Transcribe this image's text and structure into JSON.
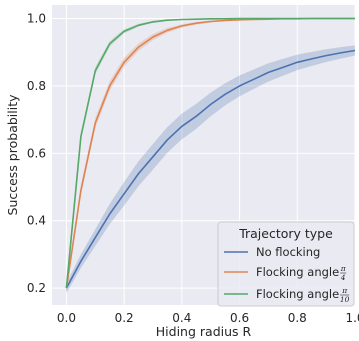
{
  "chart_data": {
    "type": "line",
    "xlabel": "Hiding radius R",
    "ylabel": "Success probability",
    "xlim": [
      -0.05,
      1.0
    ],
    "ylim": [
      0.15,
      1.04
    ],
    "xticks": [
      0.0,
      0.2,
      0.4,
      0.6,
      0.8,
      1.0
    ],
    "xtick_labels": [
      "0.0",
      "0.2",
      "0.4",
      "0.6",
      "0.8",
      "1.0"
    ],
    "yticks": [
      0.2,
      0.4,
      0.6,
      0.8,
      1.0
    ],
    "ytick_labels": [
      "0.2",
      "0.4",
      "0.6",
      "0.8",
      "1.0"
    ],
    "grid": true,
    "style": "seaborn-darkgrid",
    "legend": {
      "title": "Trajectory type",
      "placement": "lower-right"
    },
    "series": [
      {
        "name": "No flocking",
        "label_text": "No flocking",
        "label_frac": null,
        "color": "#4c72b0",
        "x": [
          0.0,
          0.05,
          0.1,
          0.15,
          0.2,
          0.25,
          0.3,
          0.35,
          0.4,
          0.45,
          0.5,
          0.55,
          0.6,
          0.65,
          0.7,
          0.75,
          0.8,
          0.85,
          0.9,
          0.95,
          1.0
        ],
        "y": [
          0.2,
          0.28,
          0.35,
          0.42,
          0.48,
          0.54,
          0.59,
          0.64,
          0.68,
          0.71,
          0.745,
          0.775,
          0.8,
          0.82,
          0.84,
          0.855,
          0.87,
          0.88,
          0.89,
          0.898,
          0.905
        ],
        "ci": [
          0.015,
          0.02,
          0.025,
          0.03,
          0.035,
          0.037,
          0.038,
          0.038,
          0.038,
          0.037,
          0.035,
          0.033,
          0.031,
          0.029,
          0.027,
          0.025,
          0.023,
          0.021,
          0.019,
          0.017,
          0.015
        ]
      },
      {
        "name": "Flocking angle π/4",
        "label_text": "Flocking angle ",
        "label_frac": [
          "π",
          "4"
        ],
        "color": "#dd8452",
        "x": [
          0.0,
          0.05,
          0.1,
          0.15,
          0.2,
          0.25,
          0.3,
          0.35,
          0.4,
          0.45,
          0.5,
          0.55,
          0.6,
          0.65,
          0.7,
          0.75,
          0.8,
          0.85,
          0.9,
          0.95,
          1.0
        ],
        "y": [
          0.2,
          0.49,
          0.69,
          0.8,
          0.87,
          0.915,
          0.945,
          0.965,
          0.978,
          0.986,
          0.991,
          0.994,
          0.996,
          0.997,
          0.998,
          0.999,
          0.999,
          1.0,
          1.0,
          1.0,
          1.0
        ],
        "ci": [
          0.01,
          0.015,
          0.015,
          0.014,
          0.013,
          0.011,
          0.009,
          0.007,
          0.005,
          0.004,
          0.003,
          0.002,
          0.002,
          0.001,
          0.001,
          0.001,
          0.001,
          0.0,
          0.0,
          0.0,
          0.0
        ]
      },
      {
        "name": "Flocking angle π/10",
        "label_text": "Flocking angle ",
        "label_frac": [
          "π",
          "10"
        ],
        "color": "#55a868",
        "x": [
          0.0,
          0.05,
          0.1,
          0.15,
          0.2,
          0.25,
          0.3,
          0.35,
          0.4,
          0.45,
          0.5,
          0.55,
          0.6,
          0.65,
          0.7,
          0.75,
          0.8,
          0.85,
          0.9,
          0.95,
          1.0
        ],
        "y": [
          0.2,
          0.65,
          0.845,
          0.925,
          0.962,
          0.98,
          0.99,
          0.995,
          0.997,
          0.998,
          0.999,
          0.999,
          1.0,
          1.0,
          1.0,
          1.0,
          1.0,
          1.0,
          1.0,
          1.0,
          1.0
        ],
        "ci": [
          0.01,
          0.012,
          0.011,
          0.008,
          0.006,
          0.004,
          0.003,
          0.002,
          0.001,
          0.001,
          0.001,
          0.0,
          0.0,
          0.0,
          0.0,
          0.0,
          0.0,
          0.0,
          0.0,
          0.0,
          0.0
        ]
      }
    ]
  }
}
